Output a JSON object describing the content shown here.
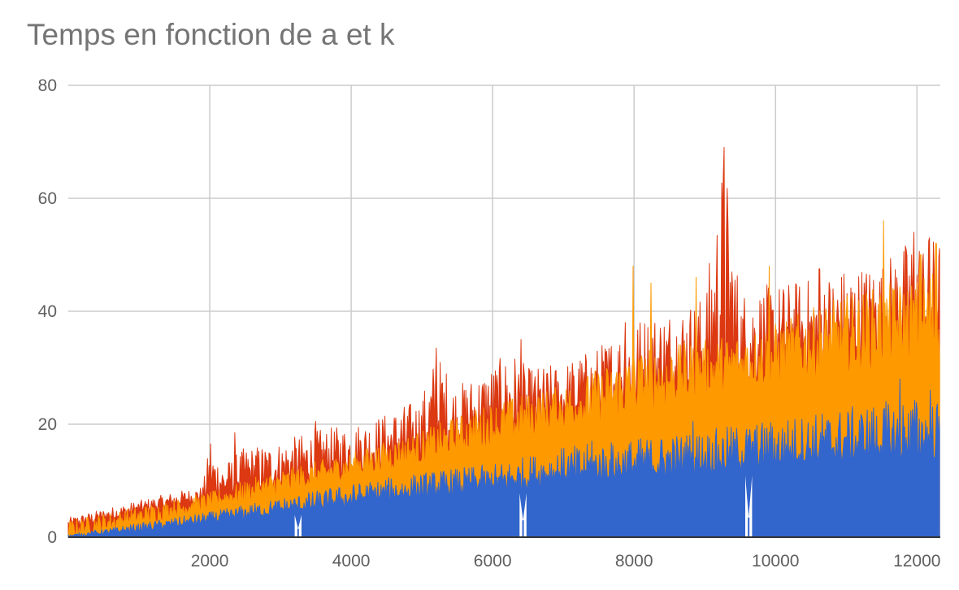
{
  "chart_data": {
    "type": "area",
    "title": "Temps en fonction de a et k",
    "xlabel": "",
    "ylabel": "",
    "xlim": [
      0,
      12330
    ],
    "ylim": [
      0,
      80
    ],
    "x_ticks": [
      2000,
      4000,
      6000,
      8000,
      10000,
      12000
    ],
    "y_ticks": [
      0,
      20,
      40,
      60,
      80
    ],
    "grid": true,
    "legend": "none",
    "series": [
      {
        "color": "#dc3912",
        "baseline": [
          [
            0,
            1.5
          ],
          [
            2000,
            6.5
          ],
          [
            4000,
            11
          ],
          [
            6000,
            16.5
          ],
          [
            8000,
            22
          ],
          [
            10000,
            27.5
          ],
          [
            12330,
            33
          ]
        ],
        "upper": [
          [
            0,
            3.5
          ],
          [
            500,
            5
          ],
          [
            1000,
            6.5
          ],
          [
            1500,
            8
          ],
          [
            1900,
            9
          ],
          [
            2000,
            16.5
          ],
          [
            2200,
            13
          ],
          [
            2500,
            16
          ],
          [
            3000,
            17
          ],
          [
            3500,
            19
          ],
          [
            4000,
            20
          ],
          [
            4500,
            22
          ],
          [
            5000,
            25
          ],
          [
            5200,
            33
          ],
          [
            5500,
            27
          ],
          [
            6000,
            31
          ],
          [
            6300,
            33
          ],
          [
            6500,
            30
          ],
          [
            7000,
            31
          ],
          [
            7500,
            34
          ],
          [
            8000,
            39
          ],
          [
            8500,
            41
          ],
          [
            9000,
            43
          ],
          [
            9270,
            69
          ],
          [
            9500,
            44
          ],
          [
            10000,
            45
          ],
          [
            10500,
            46
          ],
          [
            11000,
            48
          ],
          [
            11500,
            49
          ],
          [
            12000,
            54
          ],
          [
            12330,
            53
          ]
        ],
        "spikes": [
          [
            2010,
            16.5
          ],
          [
            2350,
            18.5
          ],
          [
            3500,
            20.5
          ],
          [
            5200,
            33.5
          ],
          [
            6400,
            35
          ],
          [
            7880,
            38
          ],
          [
            9270,
            69
          ],
          [
            10620,
            47.5
          ],
          [
            11960,
            54
          ],
          [
            12180,
            53
          ]
        ]
      },
      {
        "color": "#ff9900",
        "baseline": [
          [
            0,
            0
          ],
          [
            1000,
            2
          ],
          [
            2000,
            5
          ],
          [
            3000,
            7.5
          ],
          [
            4000,
            10.5
          ],
          [
            5000,
            13
          ],
          [
            6000,
            16
          ],
          [
            7000,
            19
          ],
          [
            8000,
            21.5
          ],
          [
            9000,
            24.5
          ],
          [
            10000,
            27
          ],
          [
            11000,
            29
          ],
          [
            12330,
            31.5
          ]
        ],
        "upper": [
          [
            0,
            3
          ],
          [
            1000,
            5.5
          ],
          [
            2000,
            8
          ],
          [
            3000,
            12
          ],
          [
            4000,
            15
          ],
          [
            5000,
            19
          ],
          [
            6000,
            24
          ],
          [
            7000,
            27
          ],
          [
            8000,
            33
          ],
          [
            9000,
            35
          ],
          [
            10000,
            38
          ],
          [
            11000,
            43
          ],
          [
            12000,
            46
          ],
          [
            12330,
            50
          ]
        ],
        "spikes": [
          [
            7990,
            48
          ],
          [
            8240,
            45
          ],
          [
            8880,
            46
          ],
          [
            9910,
            48
          ],
          [
            11530,
            56
          ],
          [
            12050,
            50
          ],
          [
            12270,
            52
          ]
        ]
      },
      {
        "color": "#3366cc",
        "baseline": [
          [
            0,
            0
          ],
          [
            1000,
            1
          ],
          [
            2000,
            2.5
          ],
          [
            3000,
            4
          ],
          [
            4000,
            5.5
          ],
          [
            5000,
            7
          ],
          [
            6000,
            8
          ],
          [
            7000,
            9.5
          ],
          [
            8000,
            10.5
          ],
          [
            9000,
            11.5
          ],
          [
            10000,
            12.5
          ],
          [
            11000,
            13.5
          ],
          [
            12330,
            14
          ]
        ],
        "upper": [
          [
            0,
            0.5
          ],
          [
            1000,
            2.5
          ],
          [
            2000,
            4.5
          ],
          [
            3000,
            7
          ],
          [
            4000,
            9.5
          ],
          [
            5000,
            11.5
          ],
          [
            6000,
            13
          ],
          [
            7000,
            16
          ],
          [
            8000,
            17.5
          ],
          [
            9000,
            19
          ],
          [
            10000,
            21
          ],
          [
            11000,
            23
          ],
          [
            12000,
            25
          ],
          [
            12330,
            24
          ]
        ],
        "dips": [
          [
            3250,
            1.5
          ],
          [
            6430,
            3
          ],
          [
            9620,
            3.5
          ]
        ],
        "spikes": [
          [
            7400,
            17
          ],
          [
            8830,
            20.5
          ],
          [
            11760,
            28
          ],
          [
            12190,
            26
          ]
        ]
      }
    ]
  }
}
